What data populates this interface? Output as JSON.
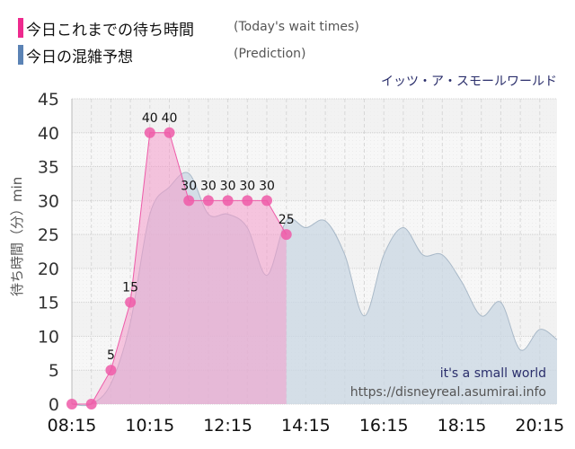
{
  "legend": {
    "actual": {
      "label_jp": "今日これまでの待ち時間",
      "label_en": "(Today's wait times)",
      "color": "#ee2a8e"
    },
    "prediction": {
      "label_jp": "今日の混雑予想",
      "label_en": "(Prediction)",
      "color": "#5b83b5"
    }
  },
  "attraction_name": "イッツ・ア・スモールワールド",
  "watermark": {
    "title": "it's a small world",
    "url": "https://disneyreal.asumirai.info"
  },
  "chart_data": {
    "type": "area",
    "title": "イッツ・ア・スモールワールド",
    "xlabel": "",
    "ylabel": "待ち時間（分）min",
    "ylim": [
      0,
      45
    ],
    "yticks": [
      0,
      5,
      10,
      15,
      20,
      25,
      30,
      35,
      40,
      45
    ],
    "xticks": [
      "08:15",
      "10:15",
      "12:15",
      "14:15",
      "16:15",
      "18:15",
      "20:15"
    ],
    "grid": true,
    "legend_position": "top-left",
    "series": [
      {
        "name": "今日これまでの待ち時間 (Today's wait times)",
        "x": [
          "08:15",
          "08:45",
          "09:15",
          "09:45",
          "10:15",
          "10:45",
          "11:15",
          "11:45",
          "12:15",
          "12:45",
          "13:15",
          "13:45"
        ],
        "values": [
          0,
          0,
          5,
          15,
          40,
          40,
          30,
          30,
          30,
          30,
          30,
          25
        ],
        "data_labels": [
          "",
          "",
          "5",
          "15",
          "40",
          "40",
          "30",
          "30",
          "30",
          "30",
          "30",
          "25"
        ]
      },
      {
        "name": "今日の混雑予想 (Prediction)",
        "x": [
          "08:15",
          "08:45",
          "09:15",
          "09:45",
          "10:15",
          "10:45",
          "11:15",
          "11:45",
          "12:15",
          "12:45",
          "13:15",
          "13:45",
          "14:15",
          "14:45",
          "15:15",
          "15:45",
          "16:15",
          "16:45",
          "17:15",
          "17:45",
          "18:15",
          "18:45",
          "19:15",
          "19:45",
          "20:15",
          "20:45"
        ],
        "values": [
          0,
          0,
          3,
          12,
          28,
          32,
          34,
          28,
          28,
          26,
          19,
          27,
          26,
          27,
          22,
          13,
          22,
          26,
          22,
          22,
          18,
          13,
          15,
          8,
          11,
          9.5
        ]
      }
    ]
  }
}
